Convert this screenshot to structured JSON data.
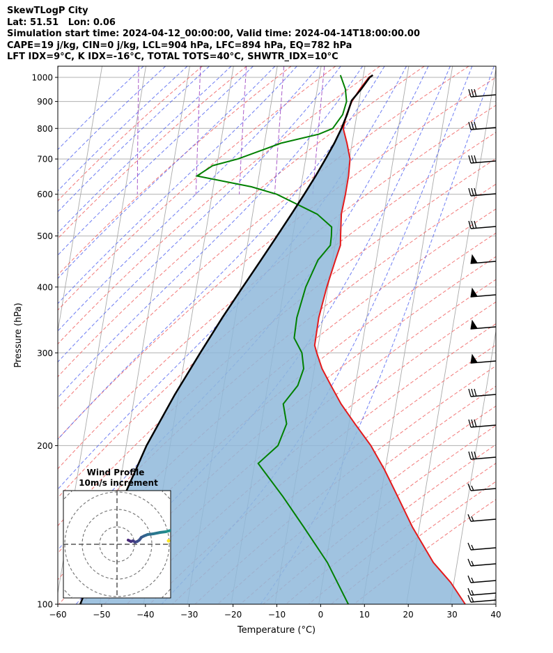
{
  "header": {
    "line1": "SkewTLogP City",
    "line2": "Lat: 51.51   Lon: 0.06",
    "line3": "Simulation start time: 2024-04-12_00:00:00, Valid time: 2024-04-14T18:00:00.00",
    "line4": "CAPE=19 j/kg, CIN=0 j/kg, LCL=904 hPa, LFC=894 hPa, EQ=782 hPa",
    "line5": "LFT IDX=9°C, K IDX=-16°C, TOTAL TOTS=40°C, SHWTR_IDX=10°C"
  },
  "chart_data": {
    "type": "line",
    "subtype": "skew-t log-p",
    "xlabel": "Temperature (°C)",
    "ylabel": "Pressure (hPa)",
    "xlim": [
      -60,
      40
    ],
    "ylim": [
      1050,
      100
    ],
    "yscale": "log",
    "grid": true,
    "x_ticks": [
      "−60",
      "−50",
      "−40",
      "−30",
      "−20",
      "−10",
      "0",
      "10",
      "20",
      "30",
      "40"
    ],
    "y_ticks": [
      {
        "p": 100,
        "label": "100"
      },
      {
        "p": 200,
        "label": "200"
      },
      {
        "p": 300,
        "label": "300"
      },
      {
        "p": 400,
        "label": "400"
      },
      {
        "p": 500,
        "label": "500"
      },
      {
        "p": 600,
        "label": "600"
      },
      {
        "p": 700,
        "label": "700"
      },
      {
        "p": 800,
        "label": "800"
      },
      {
        "p": 900,
        "label": "900"
      },
      {
        "p": 1000,
        "label": "1000"
      }
    ],
    "colors": {
      "temperature": "#e31a1c",
      "dewpoint": "#008000",
      "parcel": "#000000",
      "cape_fill": "#8fb9da",
      "dry_adiabat": "#f06060",
      "moist_adiabat": "#4a5cf0",
      "mixing_ratio": "#9a40c0",
      "isotherm": "#aaaaaa"
    },
    "temperature": [
      [
        1010,
        12.0
      ],
      [
        1000,
        11.0
      ],
      [
        950,
        8.5
      ],
      [
        900,
        6.2
      ],
      [
        850,
        4.5
      ],
      [
        800,
        3.2
      ],
      [
        750,
        3.5
      ],
      [
        700,
        3.6
      ],
      [
        650,
        2.6
      ],
      [
        600,
        1.2
      ],
      [
        550,
        -0.5
      ],
      [
        500,
        -1.5
      ],
      [
        480,
        -1.9
      ],
      [
        450,
        -3.6
      ],
      [
        400,
        -6.6
      ],
      [
        350,
        -9.6
      ],
      [
        310,
        -11.6
      ],
      [
        300,
        -11.4
      ],
      [
        280,
        -10.8
      ],
      [
        260,
        -9.4
      ],
      [
        240,
        -7.8
      ],
      [
        220,
        -5.4
      ],
      [
        200,
        -2.6
      ],
      [
        180,
        -0.4
      ],
      [
        160,
        1.6
      ],
      [
        140,
        3.8
      ],
      [
        120,
        7.2
      ],
      [
        110,
        10.4
      ],
      [
        100,
        12.9
      ]
    ],
    "dewpoint": [
      [
        1010,
        4.6
      ],
      [
        950,
        5.2
      ],
      [
        900,
        5.0
      ],
      [
        850,
        3.6
      ],
      [
        800,
        0.8
      ],
      [
        780,
        -2.6
      ],
      [
        750,
        -11.6
      ],
      [
        700,
        -22.0
      ],
      [
        680,
        -28.0
      ],
      [
        650,
        -32.0
      ],
      [
        620,
        -20.0
      ],
      [
        600,
        -14.5
      ],
      [
        550,
        -6.0
      ],
      [
        520,
        -3.2
      ],
      [
        500,
        -3.6
      ],
      [
        480,
        -4.2
      ],
      [
        450,
        -7.6
      ],
      [
        400,
        -11.4
      ],
      [
        350,
        -14.6
      ],
      [
        320,
        -16.0
      ],
      [
        300,
        -14.8
      ],
      [
        280,
        -15.0
      ],
      [
        260,
        -17.0
      ],
      [
        240,
        -21.0
      ],
      [
        220,
        -21.0
      ],
      [
        200,
        -23.8
      ],
      [
        185,
        -29.0
      ],
      [
        160,
        -24.6
      ],
      [
        140,
        -21.0
      ],
      [
        120,
        -17.0
      ],
      [
        100,
        -13.8
      ]
    ],
    "parcel": [
      [
        1010,
        12.0
      ],
      [
        1000,
        11.2
      ],
      [
        950,
        8.8
      ],
      [
        904,
        6.2
      ],
      [
        850,
        4.6
      ],
      [
        800,
        2.8
      ],
      [
        750,
        0.6
      ],
      [
        700,
        -2.0
      ],
      [
        650,
        -4.9
      ],
      [
        600,
        -8.2
      ],
      [
        550,
        -11.9
      ],
      [
        500,
        -16.0
      ],
      [
        450,
        -20.6
      ],
      [
        400,
        -25.8
      ],
      [
        350,
        -31.6
      ],
      [
        300,
        -38.0
      ],
      [
        250,
        -45.4
      ],
      [
        200,
        -53.8
      ],
      [
        150,
        -63.0
      ],
      [
        100,
        -75.0
      ]
    ],
    "inset": {
      "title": "Wind Profile",
      "subtitle": "10m/s increment"
    }
  }
}
